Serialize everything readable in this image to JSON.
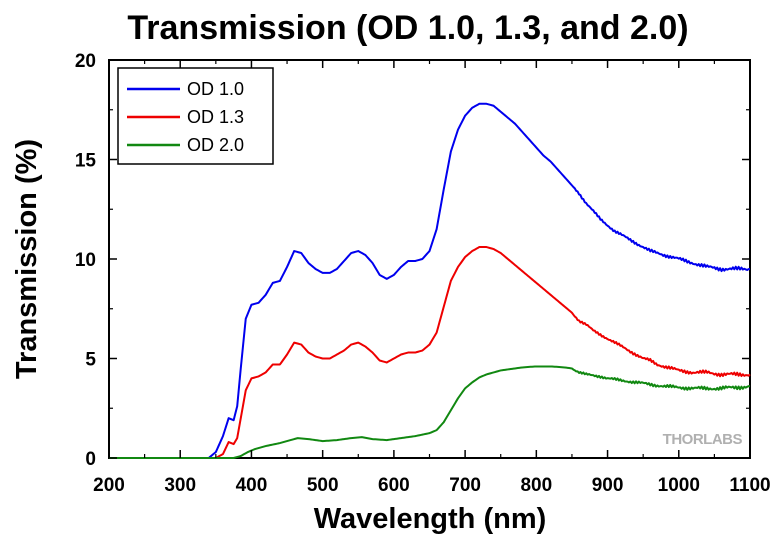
{
  "chart_data": {
    "type": "line",
    "title": "Transmission (OD 1.0, 1.3, and 2.0)",
    "xlabel": "Wavelength (nm)",
    "ylabel": "Transmission (%)",
    "xlim": [
      200,
      1100
    ],
    "ylim": [
      0,
      20
    ],
    "x_ticks": [
      "200",
      "300",
      "400",
      "500",
      "600",
      "700",
      "800",
      "900",
      "1000",
      "1100"
    ],
    "y_ticks": [
      "0",
      "5",
      "10",
      "15",
      "20"
    ],
    "grid": false,
    "legend_position": "top-left",
    "watermark": "THORLABS",
    "series": [
      {
        "name": "OD 1.0",
        "color": "#0000ee",
        "points": [
          [
            200,
            0
          ],
          [
            340,
            0
          ],
          [
            350,
            0.3
          ],
          [
            360,
            1.1
          ],
          [
            368,
            2.0
          ],
          [
            375,
            1.9
          ],
          [
            380,
            2.6
          ],
          [
            385,
            4.5
          ],
          [
            392,
            7.0
          ],
          [
            400,
            7.7
          ],
          [
            410,
            7.8
          ],
          [
            420,
            8.2
          ],
          [
            430,
            8.8
          ],
          [
            440,
            8.9
          ],
          [
            450,
            9.6
          ],
          [
            460,
            10.4
          ],
          [
            470,
            10.3
          ],
          [
            480,
            9.8
          ],
          [
            490,
            9.5
          ],
          [
            500,
            9.3
          ],
          [
            510,
            9.3
          ],
          [
            520,
            9.5
          ],
          [
            530,
            9.9
          ],
          [
            540,
            10.3
          ],
          [
            550,
            10.4
          ],
          [
            560,
            10.2
          ],
          [
            570,
            9.8
          ],
          [
            580,
            9.2
          ],
          [
            590,
            9.0
          ],
          [
            600,
            9.2
          ],
          [
            610,
            9.6
          ],
          [
            620,
            9.9
          ],
          [
            630,
            9.9
          ],
          [
            640,
            10.0
          ],
          [
            650,
            10.4
          ],
          [
            660,
            11.5
          ],
          [
            670,
            13.5
          ],
          [
            680,
            15.4
          ],
          [
            690,
            16.5
          ],
          [
            700,
            17.2
          ],
          [
            710,
            17.6
          ],
          [
            720,
            17.8
          ],
          [
            730,
            17.8
          ],
          [
            740,
            17.7
          ],
          [
            750,
            17.4
          ],
          [
            760,
            17.1
          ],
          [
            770,
            16.8
          ],
          [
            780,
            16.4
          ],
          [
            790,
            16.0
          ],
          [
            800,
            15.6
          ],
          [
            810,
            15.2
          ],
          [
            820,
            14.9
          ],
          [
            830,
            14.5
          ],
          [
            840,
            14.1
          ],
          [
            850,
            13.7
          ],
          [
            860,
            13.3
          ],
          [
            870,
            12.8
          ],
          [
            880,
            12.4
          ],
          [
            890,
            12.0
          ],
          [
            900,
            11.7
          ],
          [
            910,
            11.4
          ],
          [
            920,
            11.2
          ],
          [
            930,
            11.0
          ],
          [
            940,
            10.8
          ],
          [
            950,
            10.6
          ],
          [
            960,
            10.4
          ],
          [
            970,
            10.3
          ],
          [
            980,
            10.2
          ],
          [
            990,
            10.1
          ],
          [
            1000,
            10.0
          ],
          [
            1020,
            9.8
          ],
          [
            1040,
            9.6
          ],
          [
            1060,
            9.5
          ],
          [
            1080,
            9.5
          ],
          [
            1100,
            9.5
          ]
        ]
      },
      {
        "name": "OD 1.3",
        "color": "#ee0000",
        "points": [
          [
            200,
            0
          ],
          [
            350,
            0
          ],
          [
            360,
            0.2
          ],
          [
            368,
            0.8
          ],
          [
            375,
            0.7
          ],
          [
            380,
            1.0
          ],
          [
            385,
            2.0
          ],
          [
            392,
            3.4
          ],
          [
            400,
            4.0
          ],
          [
            410,
            4.1
          ],
          [
            420,
            4.3
          ],
          [
            430,
            4.7
          ],
          [
            440,
            4.7
          ],
          [
            450,
            5.2
          ],
          [
            460,
            5.8
          ],
          [
            470,
            5.7
          ],
          [
            480,
            5.3
          ],
          [
            490,
            5.1
          ],
          [
            500,
            5.0
          ],
          [
            510,
            5.0
          ],
          [
            520,
            5.2
          ],
          [
            530,
            5.4
          ],
          [
            540,
            5.7
          ],
          [
            550,
            5.8
          ],
          [
            560,
            5.6
          ],
          [
            570,
            5.3
          ],
          [
            580,
            4.9
          ],
          [
            590,
            4.8
          ],
          [
            600,
            5.0
          ],
          [
            610,
            5.2
          ],
          [
            620,
            5.3
          ],
          [
            630,
            5.3
          ],
          [
            640,
            5.4
          ],
          [
            650,
            5.7
          ],
          [
            660,
            6.3
          ],
          [
            670,
            7.6
          ],
          [
            680,
            8.9
          ],
          [
            690,
            9.6
          ],
          [
            700,
            10.1
          ],
          [
            710,
            10.4
          ],
          [
            720,
            10.6
          ],
          [
            730,
            10.6
          ],
          [
            740,
            10.5
          ],
          [
            750,
            10.3
          ],
          [
            760,
            10.0
          ],
          [
            770,
            9.7
          ],
          [
            780,
            9.4
          ],
          [
            790,
            9.1
          ],
          [
            800,
            8.8
          ],
          [
            810,
            8.5
          ],
          [
            820,
            8.2
          ],
          [
            830,
            7.9
          ],
          [
            840,
            7.6
          ],
          [
            850,
            7.3
          ],
          [
            860,
            6.9
          ],
          [
            870,
            6.7
          ],
          [
            880,
            6.4
          ],
          [
            890,
            6.2
          ],
          [
            900,
            6.0
          ],
          [
            910,
            5.8
          ],
          [
            920,
            5.6
          ],
          [
            930,
            5.4
          ],
          [
            940,
            5.2
          ],
          [
            950,
            5.0
          ],
          [
            960,
            4.9
          ],
          [
            970,
            4.7
          ],
          [
            980,
            4.6
          ],
          [
            990,
            4.5
          ],
          [
            1000,
            4.4
          ],
          [
            1020,
            4.3
          ],
          [
            1040,
            4.3
          ],
          [
            1060,
            4.2
          ],
          [
            1080,
            4.2
          ],
          [
            1100,
            4.2
          ]
        ]
      },
      {
        "name": "OD 2.0",
        "color": "#118811",
        "points": [
          [
            200,
            0
          ],
          [
            375,
            0
          ],
          [
            385,
            0.1
          ],
          [
            395,
            0.3
          ],
          [
            405,
            0.45
          ],
          [
            420,
            0.6
          ],
          [
            440,
            0.75
          ],
          [
            455,
            0.9
          ],
          [
            465,
            1.0
          ],
          [
            480,
            0.95
          ],
          [
            500,
            0.85
          ],
          [
            520,
            0.9
          ],
          [
            540,
            1.0
          ],
          [
            555,
            1.05
          ],
          [
            570,
            0.95
          ],
          [
            590,
            0.9
          ],
          [
            610,
            1.0
          ],
          [
            630,
            1.1
          ],
          [
            650,
            1.25
          ],
          [
            660,
            1.4
          ],
          [
            670,
            1.8
          ],
          [
            680,
            2.4
          ],
          [
            690,
            3.0
          ],
          [
            700,
            3.5
          ],
          [
            710,
            3.8
          ],
          [
            720,
            4.05
          ],
          [
            730,
            4.2
          ],
          [
            740,
            4.3
          ],
          [
            750,
            4.4
          ],
          [
            760,
            4.45
          ],
          [
            770,
            4.5
          ],
          [
            780,
            4.55
          ],
          [
            790,
            4.58
          ],
          [
            800,
            4.6
          ],
          [
            810,
            4.6
          ],
          [
            820,
            4.6
          ],
          [
            830,
            4.58
          ],
          [
            840,
            4.55
          ],
          [
            850,
            4.5
          ],
          [
            860,
            4.3
          ],
          [
            870,
            4.2
          ],
          [
            880,
            4.15
          ],
          [
            890,
            4.1
          ],
          [
            900,
            4.0
          ],
          [
            920,
            3.9
          ],
          [
            940,
            3.8
          ],
          [
            960,
            3.7
          ],
          [
            980,
            3.6
          ],
          [
            1000,
            3.55
          ],
          [
            1020,
            3.5
          ],
          [
            1040,
            3.5
          ],
          [
            1060,
            3.5
          ],
          [
            1080,
            3.55
          ],
          [
            1100,
            3.6
          ]
        ]
      }
    ]
  }
}
